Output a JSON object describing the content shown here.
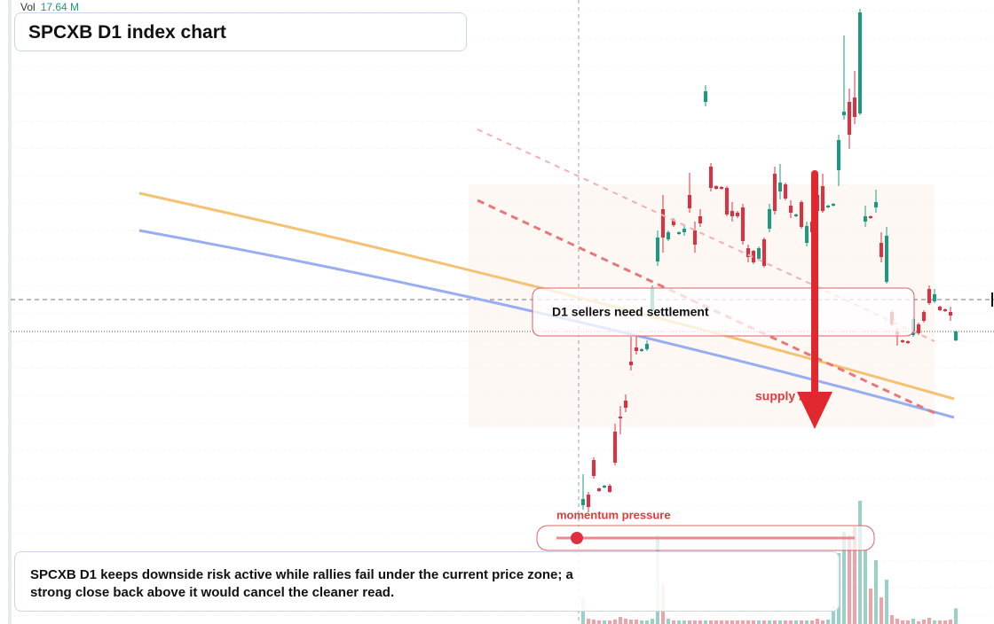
{
  "chart_data": {
    "type": "candlestick",
    "title": "SPCXB D1 index chart",
    "categories": [
      null,
      null,
      null,
      null,
      null,
      null,
      null,
      null,
      null,
      null,
      null,
      null,
      null,
      null,
      null,
      null,
      null,
      null,
      null,
      null,
      null,
      null,
      null,
      null,
      null,
      null,
      null,
      null,
      null,
      null,
      null,
      null,
      null,
      null,
      null,
      null,
      null,
      null,
      null,
      null,
      null,
      null,
      null,
      null,
      null,
      null,
      null,
      null,
      null,
      null,
      null,
      null,
      null,
      null,
      null,
      null,
      null,
      null,
      null,
      null,
      null,
      null,
      null,
      null,
      null,
      null,
      null,
      null,
      null,
      null,
      null
    ],
    "open": [
      33.5,
      36.5,
      46.25,
      38.25,
      38.5,
      39,
      54.25,
      58.5,
      63,
      74,
      78,
      77,
      77.5,
      88.5,
      102.25,
      117,
      108.5,
      114,
      110,
      110.5,
      121,
      111,
      115,
      147.25,
      129,
      123.5,
      123.25,
      123,
      116.5,
      116,
      117.5,
      106,
      105.25,
      103,
      108.5,
      111.5,
      127,
      122,
      124,
      118,
      115,
      119,
      107.5,
      113.5,
      121,
      123.5,
      117.5,
      118,
      128,
      143.5,
      147.25,
      148.5,
      144,
      113.5,
      115,
      117.5,
      107.5,
      96.5,
      88,
      82.5,
      80,
      79.75,
      81.5,
      84.5,
      88,
      94.5,
      91,
      89.5,
      88.75,
      88,
      80
    ],
    "high": [
      42.25,
      37.25,
      47,
      38.5,
      39.25,
      39.5,
      56.5,
      61.5,
      64.75,
      81,
      81,
      77.75,
      80,
      95.5,
      111,
      121,
      111,
      114.5,
      110.75,
      112.5,
      127.25,
      113.5,
      117,
      152,
      130,
      123.75,
      123.5,
      123.5,
      119,
      116.5,
      118.5,
      107,
      105.5,
      106.5,
      109,
      118.5,
      129,
      129.75,
      124.5,
      119.5,
      115.75,
      119.5,
      113.5,
      114,
      121.5,
      127,
      118.25,
      118.75,
      138,
      166,
      151,
      156,
      173.5,
      118,
      115.25,
      122.5,
      110.5,
      112,
      88.5,
      83.5,
      80.25,
      80,
      86.5,
      85,
      88.5,
      95.5,
      94.5,
      89.75,
      89,
      89.5,
      82.75
    ],
    "low": [
      32.25,
      31.5,
      41,
      37.25,
      38.25,
      37,
      44.75,
      53.5,
      59.75,
      71.5,
      76,
      76.75,
      77,
      88,
      101,
      104.75,
      108,
      112,
      109.75,
      109.5,
      116,
      104.75,
      112,
      146,
      122,
      122.5,
      122.5,
      115,
      113.5,
      114.5,
      107,
      102,
      101.5,
      102.5,
      100.5,
      110.5,
      115.5,
      119.75,
      119.5,
      114.5,
      114.75,
      111.5,
      106.5,
      110,
      116,
      116,
      117.25,
      117.75,
      123.5,
      142.25,
      134,
      141,
      143.5,
      112,
      114.25,
      116,
      102,
      96,
      84,
      78.5,
      79.25,
      79,
      81,
      81.5,
      85,
      90,
      90.5,
      88.25,
      88,
      85.5,
      79.75
    ],
    "close": [
      35.25,
      33,
      41.75,
      37.5,
      39,
      37.25,
      45.5,
      58,
      61,
      73,
      77,
      77.5,
      79,
      94.75,
      109,
      109,
      110.5,
      112.5,
      110.5,
      111.5,
      117.25,
      107,
      113,
      150.25,
      123,
      122.75,
      122.75,
      115.5,
      115,
      115,
      108,
      103.5,
      102,
      106,
      101,
      117,
      116.5,
      124.5,
      120,
      116,
      115.5,
      112,
      112.25,
      110.5,
      116.5,
      116.5,
      118,
      118.5,
      136.5,
      144.5,
      138,
      143,
      172.5,
      115,
      114.5,
      119,
      103.5,
      109.5,
      84.5,
      81.5,
      79.5,
      79.25,
      86,
      82,
      85.5,
      90.5,
      93,
      88.5,
      88.25,
      87,
      82.5
    ],
    "up_color": "#1a9b7d",
    "down_color": "#e0303f",
    "ylim": [
      0,
      176
    ],
    "volume": {
      "name": "Vol",
      "value_label": "17.64 M",
      "ylim": [
        0,
        140
      ],
      "values": [
        30,
        6,
        5,
        4,
        4,
        4,
        5,
        8,
        6,
        5,
        5,
        4,
        4,
        6,
        100,
        45,
        6,
        4,
        4,
        4,
        4,
        4,
        4,
        4,
        4,
        4,
        4,
        4,
        4,
        4,
        4,
        4,
        4,
        4,
        4,
        4,
        4,
        4,
        4,
        4,
        4,
        4,
        4,
        4,
        6,
        4,
        5,
        20,
        80,
        104,
        100,
        110,
        139,
        84,
        40,
        72,
        30,
        50,
        10,
        6,
        4,
        4,
        6,
        3,
        5,
        7,
        4,
        4,
        4,
        5,
        17.64
      ]
    },
    "annotations": {
      "zone_label": "D1 sellers need settlement",
      "supply_label": "supply zone",
      "momentum_label": "momentum pressure",
      "note": "SPCXB D1 keeps downside risk active while rallies fail under the current price zone; a strong close back above it would cancel the cleaner read."
    }
  }
}
